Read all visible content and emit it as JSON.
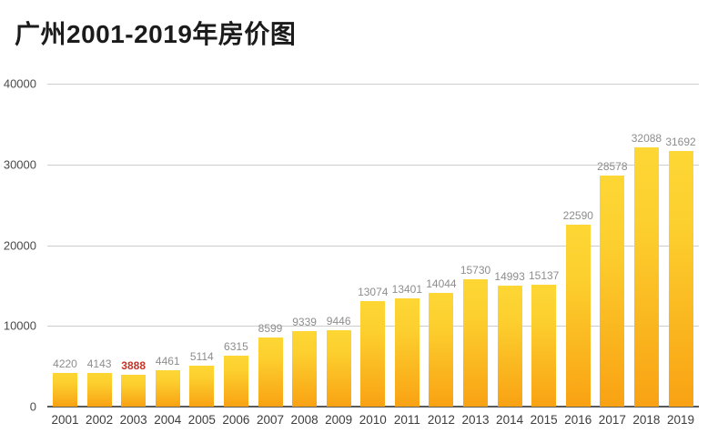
{
  "title": "广州2001-2019年房价图",
  "chart_data": {
    "type": "bar",
    "title": "广州2001-2019年房价图",
    "categories": [
      "2001",
      "2002",
      "2003",
      "2004",
      "2005",
      "2006",
      "2007",
      "2008",
      "2009",
      "2010",
      "2011",
      "2012",
      "2013",
      "2014",
      "2015",
      "2016",
      "2017",
      "2018",
      "2019"
    ],
    "values": [
      4220,
      4143,
      3888,
      4461,
      5114,
      6315,
      8599,
      9339,
      9446,
      13074,
      13401,
      14044,
      15730,
      14993,
      15137,
      22590,
      28578,
      32088,
      31692
    ],
    "value_labels_shown": true,
    "highlight_index": 2,
    "highlight_value": 3888,
    "xlabel": "",
    "ylabel": "",
    "yticks": [
      0,
      10000,
      20000,
      30000,
      40000
    ],
    "ylim": [
      0,
      40000
    ],
    "grid": true,
    "legend": "none",
    "colors": {
      "bar_gradient_top": "#fdd735",
      "bar_gradient_bottom": "#f9a213",
      "value_label": "#8d8d8d",
      "highlight_label": "#c53527",
      "gridline": "#cdcdcd",
      "axis_line": "#58595b",
      "tick_label": "#4a4a4a",
      "title_color": "#1b1b1b"
    }
  }
}
